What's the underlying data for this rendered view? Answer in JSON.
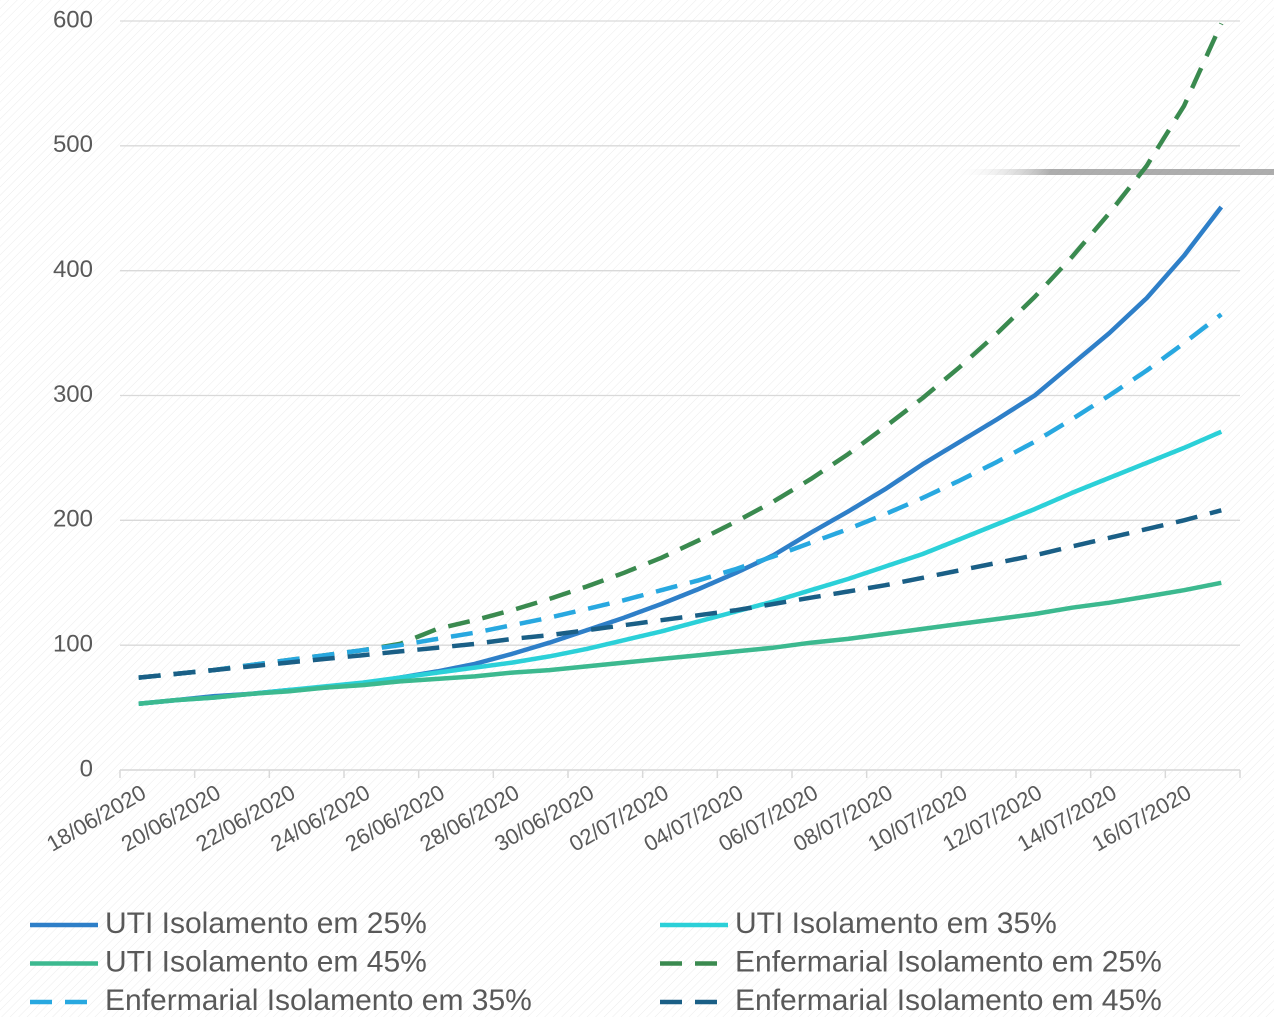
{
  "chart_data": {
    "type": "line",
    "categories": [
      "18/06/2020",
      null,
      "20/06/2020",
      null,
      "22/06/2020",
      null,
      "24/06/2020",
      null,
      "26/06/2020",
      null,
      "28/06/2020",
      null,
      "30/06/2020",
      null,
      "02/07/2020",
      null,
      "04/07/2020",
      null,
      "06/07/2020",
      null,
      "08/07/2020",
      null,
      "10/07/2020",
      null,
      "12/07/2020",
      null,
      "14/07/2020",
      null,
      "16/07/2020",
      null
    ],
    "series": [
      {
        "name": "UTI Isolamento em 25%",
        "color": "#2e7fc8",
        "dashed": false,
        "values": [
          53,
          56,
          59,
          61,
          64,
          66,
          69,
          74,
          79,
          85,
          93,
          102,
          112,
          122,
          133,
          145,
          158,
          172,
          190,
          207,
          225,
          245,
          263,
          281,
          300,
          325,
          350,
          378,
          412,
          451
        ]
      },
      {
        "name": "UTI Isolamento em 35%",
        "color": "#2bd0d8",
        "dashed": false,
        "values": [
          53,
          56,
          58,
          61,
          64,
          67,
          70,
          74,
          78,
          82,
          86,
          91,
          97,
          104,
          111,
          119,
          127,
          135,
          144,
          153,
          163,
          173,
          185,
          197,
          209,
          222,
          234,
          246,
          258,
          271
        ]
      },
      {
        "name": "UTI Isolamento em 45%",
        "color": "#3cb98f",
        "dashed": false,
        "values": [
          53,
          56,
          58,
          61,
          63,
          66,
          68,
          71,
          73,
          75,
          78,
          80,
          83,
          86,
          89,
          92,
          95,
          98,
          102,
          105,
          109,
          113,
          117,
          121,
          125,
          130,
          134,
          139,
          144,
          150
        ]
      },
      {
        "name": "Enfermarial Isolamento em 25%",
        "color": "#3a8a4f",
        "dashed": true,
        "values": [
          74,
          77,
          80,
          84,
          88,
          92,
          96,
          101,
          113,
          120,
          128,
          137,
          147,
          158,
          170,
          184,
          199,
          215,
          233,
          253,
          275,
          298,
          323,
          350,
          379,
          411,
          446,
          484,
          532,
          598
        ]
      },
      {
        "name": "Enfermarial Isolamento em 35%",
        "color": "#28a8e0",
        "dashed": true,
        "values": [
          74,
          77,
          80,
          84,
          88,
          92,
          96,
          100,
          105,
          110,
          116,
          122,
          129,
          136,
          144,
          152,
          161,
          171,
          182,
          193,
          205,
          218,
          232,
          247,
          263,
          281,
          300,
          320,
          342,
          365
        ]
      },
      {
        "name": "Enfermarial Isolamento em 45%",
        "color": "#1a5f86",
        "dashed": true,
        "values": [
          74,
          77,
          80,
          83,
          86,
          89,
          92,
          95,
          98,
          101,
          105,
          108,
          112,
          116,
          120,
          124,
          128,
          133,
          138,
          143,
          148,
          154,
          160,
          166,
          172,
          179,
          186,
          193,
          200,
          208
        ]
      }
    ],
    "ylim": [
      0,
      600
    ],
    "yticks": [
      0,
      100,
      200,
      300,
      400,
      500,
      600
    ],
    "grid": true
  }
}
